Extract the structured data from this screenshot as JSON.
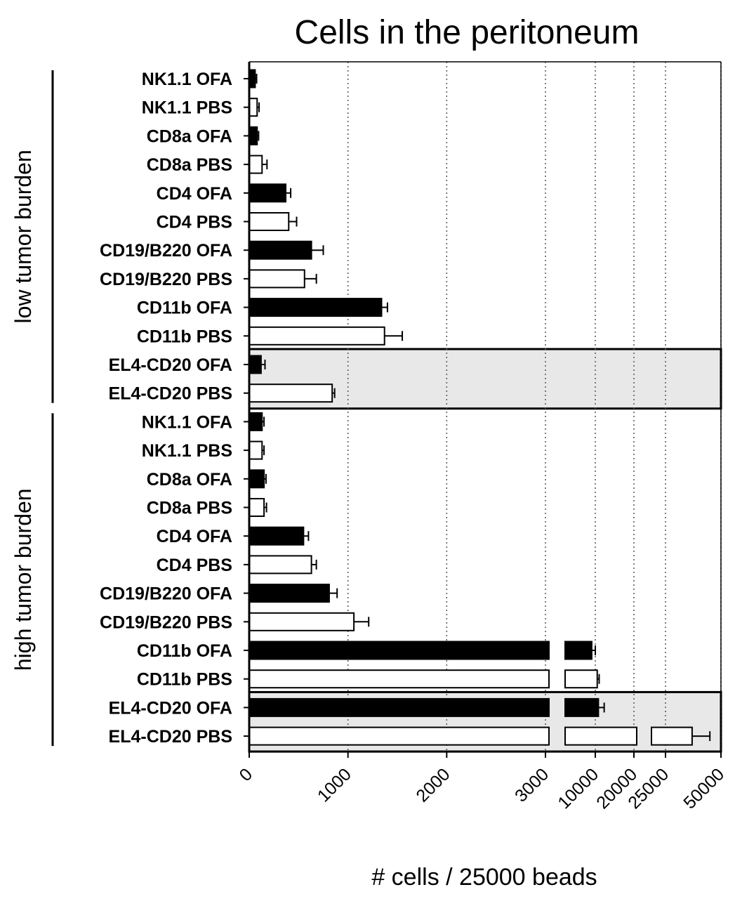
{
  "chart_data": {
    "type": "bar",
    "orientation": "horizontal",
    "title": "Cells in the peritoneum",
    "xlabel": "# cells / 25000 beads",
    "ylabel": "",
    "grid": "vertical dotted",
    "axis": {
      "note": "broken x-axis: linear 0-3000, then compressed segments",
      "ticks": [
        "0",
        "1000",
        "2000",
        "3000",
        "10000",
        "20000",
        "25000",
        "50000"
      ],
      "tick_values": [
        0,
        1000,
        2000,
        3000,
        10000,
        20000,
        25000,
        50000
      ]
    },
    "groups": [
      {
        "label": "low tumor burden",
        "rows": [
          0,
          11
        ]
      },
      {
        "label": "high tumor burden",
        "rows": [
          12,
          23
        ]
      }
    ],
    "highlight_rows": [
      [
        10,
        11
      ],
      [
        22,
        23
      ]
    ],
    "bars": [
      {
        "label": "NK1.1 OFA",
        "group": "low tumor burden",
        "treatment": "OFA",
        "value": 60,
        "error": 15
      },
      {
        "label": "NK1.1 PBS",
        "group": "low tumor burden",
        "treatment": "PBS",
        "value": 80,
        "error": 20
      },
      {
        "label": "CD8a OFA",
        "group": "low tumor burden",
        "treatment": "OFA",
        "value": 80,
        "error": 15
      },
      {
        "label": "CD8a PBS",
        "group": "low tumor burden",
        "treatment": "PBS",
        "value": 130,
        "error": 50
      },
      {
        "label": "CD4 OFA",
        "group": "low tumor burden",
        "treatment": "OFA",
        "value": 370,
        "error": 50
      },
      {
        "label": "CD4 PBS",
        "group": "low tumor burden",
        "treatment": "PBS",
        "value": 400,
        "error": 80
      },
      {
        "label": "CD19/B220 OFA",
        "group": "low tumor burden",
        "treatment": "OFA",
        "value": 630,
        "error": 120
      },
      {
        "label": "CD19/B220 PBS",
        "group": "low tumor burden",
        "treatment": "PBS",
        "value": 560,
        "error": 120
      },
      {
        "label": "CD11b OFA",
        "group": "low tumor burden",
        "treatment": "OFA",
        "value": 1340,
        "error": 60
      },
      {
        "label": "CD11b PBS",
        "group": "low tumor burden",
        "treatment": "PBS",
        "value": 1370,
        "error": 180
      },
      {
        "label": "EL4-CD20 OFA",
        "group": "low tumor burden",
        "treatment": "OFA",
        "value": 120,
        "error": 40
      },
      {
        "label": "EL4-CD20 PBS",
        "group": "low tumor burden",
        "treatment": "PBS",
        "value": 840,
        "error": 25
      },
      {
        "label": "NK1.1 OFA",
        "group": "high tumor burden",
        "treatment": "OFA",
        "value": 130,
        "error": 20
      },
      {
        "label": "NK1.1 PBS",
        "group": "high tumor burden",
        "treatment": "PBS",
        "value": 130,
        "error": 20
      },
      {
        "label": "CD8a OFA",
        "group": "high tumor burden",
        "treatment": "OFA",
        "value": 150,
        "error": 20
      },
      {
        "label": "CD8a PBS",
        "group": "high tumor burden",
        "treatment": "PBS",
        "value": 150,
        "error": 25
      },
      {
        "label": "CD4 OFA",
        "group": "high tumor burden",
        "treatment": "OFA",
        "value": 550,
        "error": 50
      },
      {
        "label": "CD4 PBS",
        "group": "high tumor burden",
        "treatment": "PBS",
        "value": 630,
        "error": 50
      },
      {
        "label": "CD19/B220 OFA",
        "group": "high tumor burden",
        "treatment": "OFA",
        "value": 810,
        "error": 80
      },
      {
        "label": "CD19/B220 PBS",
        "group": "high tumor burden",
        "treatment": "PBS",
        "value": 1060,
        "error": 150
      },
      {
        "label": "CD11b OFA",
        "group": "high tumor burden",
        "treatment": "OFA",
        "value": 9500,
        "error": 500
      },
      {
        "label": "CD11b PBS",
        "group": "high tumor burden",
        "treatment": "PBS",
        "value": 10500,
        "error": 500
      },
      {
        "label": "EL4-CD20 OFA",
        "group": "high tumor burden",
        "treatment": "OFA",
        "value": 10800,
        "error": 1500
      },
      {
        "label": "EL4-CD20 PBS",
        "group": "high tumor burden",
        "treatment": "PBS",
        "value": 37000,
        "error": 8000
      }
    ],
    "colors": {
      "OFA": "#000000",
      "PBS": "#ffffff",
      "highlight": "#e8e8e8",
      "grid": "#555555"
    }
  }
}
